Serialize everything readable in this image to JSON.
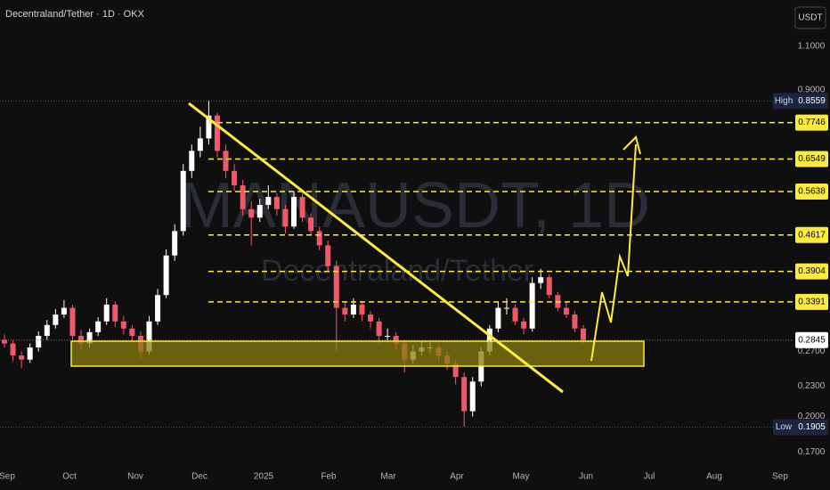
{
  "chart_data": {
    "type": "candlestick",
    "title": "Decentraland/Tether · 1D · OKX",
    "watermark": "MANAUSDT, 1D",
    "watermark_subtitle": "Decentraland/Tether",
    "currency": "USDT",
    "log_scale": true,
    "ylim": [
      0.16,
      1.362
    ],
    "yticks": [
      {
        "value": 1.1,
        "label": "1.1000"
      },
      {
        "value": 0.9,
        "label": "0.9000"
      },
      {
        "value": 0.27,
        "label": "0.2700"
      },
      {
        "value": 0.23,
        "label": "0.2300"
      },
      {
        "value": 0.2,
        "label": "0.2000"
      },
      {
        "value": 0.17,
        "label": "0.1700"
      }
    ],
    "xticks": [
      "Sep",
      "Oct",
      "Nov",
      "Dec",
      "2025",
      "Feb",
      "Mar",
      "Apr",
      "May",
      "Jun",
      "Jul",
      "Aug",
      "Sep"
    ],
    "up_color": "#ffffff",
    "down_color": "#f0596a",
    "open": [
      0.285,
      0.28,
      0.265,
      0.26,
      0.275,
      0.29,
      0.305,
      0.32,
      0.33,
      0.29,
      0.28,
      0.295,
      0.31,
      0.335,
      0.31,
      0.3,
      0.29,
      0.27,
      0.31,
      0.35,
      0.42,
      0.47,
      0.62,
      0.68,
      0.72,
      0.8,
      0.68,
      0.62,
      0.58,
      0.52,
      0.5,
      0.53,
      0.55,
      0.52,
      0.48,
      0.55,
      0.5,
      0.47,
      0.44,
      0.4,
      0.33,
      0.32,
      0.335,
      0.32,
      0.31,
      0.29,
      0.29,
      0.28,
      0.26,
      0.27,
      0.275,
      0.275,
      0.265,
      0.255,
      0.24,
      0.205,
      0.235,
      0.27,
      0.3,
      0.33,
      0.33,
      0.31,
      0.3,
      0.37,
      0.38,
      0.35,
      0.33,
      0.32,
      0.3
    ],
    "high": [
      0.292,
      0.284,
      0.27,
      0.28,
      0.296,
      0.312,
      0.328,
      0.342,
      0.335,
      0.298,
      0.3,
      0.316,
      0.345,
      0.34,
      0.318,
      0.305,
      0.296,
      0.318,
      0.36,
      0.432,
      0.485,
      0.64,
      0.7,
      0.76,
      0.856,
      0.81,
      0.7,
      0.64,
      0.595,
      0.54,
      0.545,
      0.58,
      0.56,
      0.53,
      0.565,
      0.56,
      0.51,
      0.48,
      0.45,
      0.41,
      0.34,
      0.345,
      0.34,
      0.325,
      0.315,
      0.3,
      0.295,
      0.285,
      0.278,
      0.282,
      0.282,
      0.28,
      0.27,
      0.26,
      0.245,
      0.24,
      0.275,
      0.305,
      0.34,
      0.345,
      0.335,
      0.315,
      0.38,
      0.395,
      0.385,
      0.355,
      0.338,
      0.325,
      0.305
    ],
    "low": [
      0.275,
      0.258,
      0.25,
      0.256,
      0.27,
      0.285,
      0.3,
      0.315,
      0.282,
      0.272,
      0.275,
      0.29,
      0.305,
      0.302,
      0.292,
      0.282,
      0.262,
      0.266,
      0.305,
      0.345,
      0.41,
      0.46,
      0.6,
      0.66,
      0.7,
      0.66,
      0.6,
      0.565,
      0.505,
      0.44,
      0.49,
      0.52,
      0.505,
      0.465,
      0.475,
      0.49,
      0.46,
      0.43,
      0.39,
      0.27,
      0.31,
      0.315,
      0.31,
      0.3,
      0.28,
      0.282,
      0.272,
      0.245,
      0.255,
      0.265,
      0.268,
      0.258,
      0.248,
      0.232,
      0.191,
      0.2,
      0.23,
      0.265,
      0.295,
      0.32,
      0.305,
      0.292,
      0.296,
      0.36,
      0.345,
      0.325,
      0.315,
      0.295,
      0.28
    ],
    "close": [
      0.28,
      0.265,
      0.26,
      0.275,
      0.29,
      0.305,
      0.32,
      0.33,
      0.29,
      0.28,
      0.295,
      0.31,
      0.335,
      0.31,
      0.3,
      0.29,
      0.27,
      0.31,
      0.35,
      0.42,
      0.47,
      0.62,
      0.68,
      0.72,
      0.8,
      0.68,
      0.62,
      0.58,
      0.52,
      0.5,
      0.53,
      0.55,
      0.52,
      0.48,
      0.55,
      0.5,
      0.47,
      0.44,
      0.4,
      0.33,
      0.32,
      0.335,
      0.32,
      0.31,
      0.29,
      0.29,
      0.28,
      0.26,
      0.27,
      0.275,
      0.275,
      0.265,
      0.255,
      0.24,
      0.205,
      0.235,
      0.27,
      0.3,
      0.33,
      0.33,
      0.31,
      0.3,
      0.37,
      0.38,
      0.35,
      0.33,
      0.32,
      0.3,
      0.2845
    ],
    "levels": {
      "color": "#ffeb3b",
      "values": [
        0.7746,
        0.6549,
        0.5638,
        0.4617,
        0.3904,
        0.3391
      ]
    },
    "high_label": "High",
    "high_value": 0.8559,
    "low_label": "Low",
    "low_value": 0.1905,
    "last_value": 0.2845
  }
}
